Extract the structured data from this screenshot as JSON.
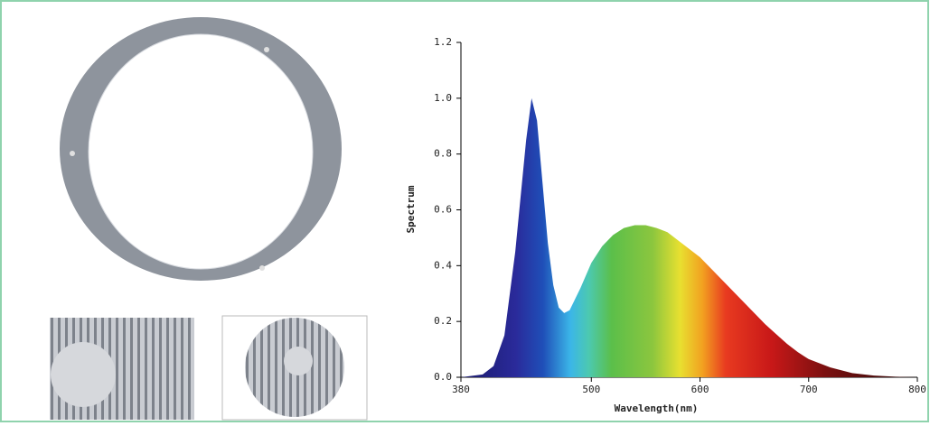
{
  "chart_data": {
    "type": "area",
    "x_label": "Wavelength(nm)",
    "y_label": "Spectrum",
    "x": [
      380,
      400,
      410,
      420,
      430,
      440,
      445,
      450,
      455,
      460,
      465,
      470,
      475,
      480,
      490,
      500,
      510,
      520,
      530,
      540,
      550,
      560,
      570,
      580,
      590,
      600,
      610,
      620,
      630,
      640,
      650,
      660,
      670,
      680,
      690,
      700,
      720,
      740,
      760,
      780,
      800
    ],
    "values": [
      0,
      0.01,
      0.04,
      0.15,
      0.45,
      0.85,
      1.0,
      0.92,
      0.7,
      0.48,
      0.33,
      0.25,
      0.23,
      0.24,
      0.32,
      0.41,
      0.47,
      0.51,
      0.535,
      0.545,
      0.545,
      0.535,
      0.52,
      0.49,
      0.46,
      0.43,
      0.39,
      0.35,
      0.31,
      0.27,
      0.23,
      0.19,
      0.155,
      0.12,
      0.09,
      0.065,
      0.035,
      0.015,
      0.006,
      0.002,
      0
    ],
    "xlim": [
      380,
      800
    ],
    "xticks": [
      380,
      500,
      600,
      700,
      800
    ],
    "ylim": [
      0,
      1.2
    ],
    "yticks": [
      {
        "value": 0,
        "label": "0.0"
      },
      0.2,
      0.4,
      0.6,
      0.8,
      {
        "value": 1,
        "label": "1.0"
      },
      1.2
    ]
  }
}
